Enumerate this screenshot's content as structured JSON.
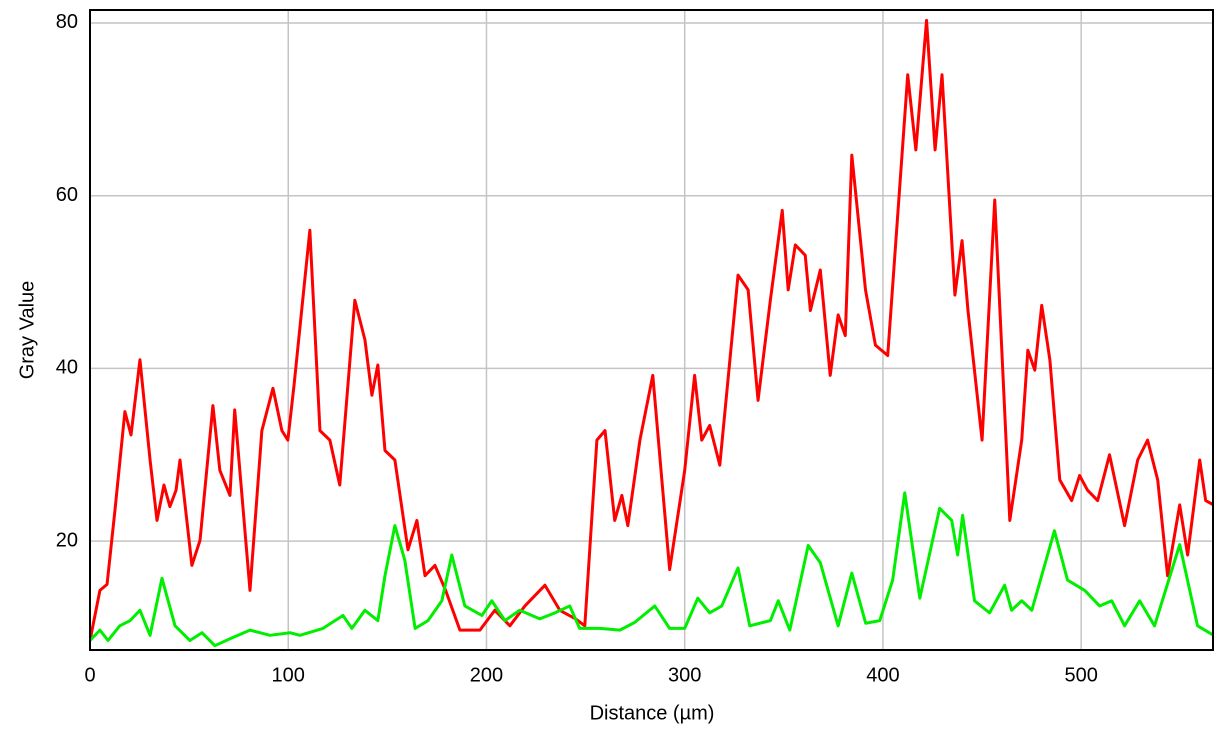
{
  "chart_data": {
    "type": "line",
    "xlabel": "Distance (µm)",
    "ylabel": "Gray Value",
    "xlim": [
      0,
      567
    ],
    "ylim": [
      7.4,
      81.5
    ],
    "xticks": [
      0,
      100,
      200,
      300,
      400,
      500
    ],
    "yticks": [
      20,
      40,
      60,
      80
    ],
    "grid": true,
    "series": [
      {
        "color": "#ff0000",
        "x": [
          0,
          5,
          8.6,
          12.6,
          17.6,
          20.7,
          25.2,
          30.3,
          33.8,
          37.3,
          40.3,
          43.4,
          45.4,
          51.4,
          55.5,
          62,
          65.5,
          70.6,
          73,
          80.7,
          86.7,
          92.3,
          96.8,
          99.8,
          102.9,
          110.9,
          116,
          121,
          126,
          133.6,
          138.7,
          142.2,
          145.2,
          148.8,
          153.8,
          160.4,
          164.9,
          169,
          174,
          179.4,
          186.6,
          196.7,
          204.2,
          211.8,
          219.4,
          229.5,
          237,
          245,
          249.6,
          255.7,
          259.8,
          264.7,
          268.3,
          271.3,
          277.4,
          283.9,
          292.4,
          300,
          305,
          308.6,
          312.6,
          317.7,
          326.9,
          332,
          337,
          343.2,
          349.2,
          352.2,
          355.8,
          360.8,
          363.4,
          368.4,
          373.4,
          377.4,
          381,
          384.3,
          391.2,
          396.2,
          402.4,
          412.5,
          416.6,
          422,
          426.3,
          429.8,
          436.3,
          439.9,
          442.9,
          450,
          456.4,
          464,
          470,
          473.1,
          476.6,
          480.1,
          484.2,
          489.2,
          495.2,
          499.2,
          503.2,
          508.3,
          514.3,
          521.9,
          528.5,
          533.5,
          538.6,
          543.6,
          549.7,
          553.7,
          559.8,
          562.8,
          566.8
        ],
        "values": [
          8.5,
          14.3,
          15,
          23.6,
          35,
          32.3,
          41,
          29.4,
          22.4,
          26.5,
          24,
          25.9,
          29.4,
          17.2,
          20.1,
          35.7,
          28.2,
          25.3,
          35.2,
          14.3,
          32.8,
          37.7,
          32.8,
          31.7,
          38,
          56,
          32.8,
          31.7,
          26.5,
          47.9,
          43.3,
          36.9,
          40.4,
          30.5,
          29.4,
          19,
          22.4,
          16,
          17.2,
          14.3,
          9.7,
          9.7,
          12,
          10.2,
          12.5,
          14.9,
          12,
          11,
          10.2,
          31.7,
          32.8,
          22.4,
          25.3,
          21.8,
          31.7,
          39.2,
          16.7,
          28.2,
          39.2,
          31.7,
          33.4,
          28.8,
          50.8,
          49.1,
          36.3,
          47.9,
          58.3,
          49.1,
          54.3,
          53.1,
          46.7,
          51.4,
          39.2,
          46.2,
          43.8,
          64.7,
          49.1,
          42.7,
          41.5,
          74,
          65.3,
          80.3,
          65.3,
          74,
          48.5,
          54.8,
          46.7,
          31.7,
          59.5,
          22.4,
          31.7,
          42.1,
          39.8,
          47.3,
          41,
          27.1,
          24.7,
          27.6,
          25.9,
          24.7,
          30,
          21.8,
          29.4,
          31.7,
          27.1,
          16,
          24.2,
          18.4,
          29.4,
          24.7,
          24.2
        ]
      },
      {
        "color": "#00ee00",
        "x": [
          0,
          5,
          9.1,
          15,
          20.2,
          25.2,
          30.3,
          36.3,
          42.9,
          50.4,
          56.5,
          63,
          70.6,
          80.7,
          90.8,
          100.9,
          105.9,
          117.5,
          127.6,
          132.1,
          138.7,
          145.2,
          148.8,
          153.8,
          158.8,
          164,
          170.5,
          177.5,
          182.5,
          189.1,
          197.7,
          202.7,
          209.3,
          216.8,
          226.9,
          234.5,
          242,
          247,
          257.2,
          267.3,
          274.8,
          284.9,
          292.4,
          300,
          306.6,
          312.6,
          318.7,
          326.9,
          332.8,
          343.2,
          347.2,
          353,
          362.3,
          368.4,
          377.4,
          384.3,
          391.3,
          398.4,
          404.9,
          411,
          418.6,
          428.6,
          434.7,
          437.7,
          440.2,
          446.2,
          453.8,
          461.4,
          464.9,
          470,
          475.1,
          486.5,
          493.1,
          501.8,
          509.3,
          515.4,
          521.9,
          529.5,
          537,
          549.7,
          558.7,
          566.8
        ],
        "values": [
          8.5,
          9.7,
          8.5,
          10.2,
          10.8,
          12,
          9.1,
          15.7,
          10.2,
          8.5,
          9.4,
          7.9,
          8.7,
          9.7,
          9.1,
          9.4,
          9.1,
          9.9,
          11.4,
          9.9,
          12,
          10.8,
          16,
          21.8,
          17.8,
          9.9,
          10.8,
          13.1,
          18.4,
          12.5,
          11.4,
          13.1,
          10.8,
          12,
          11,
          11.7,
          12.5,
          9.9,
          9.9,
          9.7,
          10.6,
          12.5,
          9.9,
          9.9,
          13.4,
          11.7,
          12.5,
          16.9,
          10.2,
          10.8,
          13.1,
          9.7,
          19.5,
          17.5,
          10.2,
          16.3,
          10.5,
          10.8,
          15.5,
          25.6,
          13.4,
          23.8,
          22.4,
          18.4,
          23,
          13.1,
          11.7,
          14.9,
          12,
          13.1,
          12,
          21.2,
          15.5,
          14.3,
          12.5,
          13.1,
          10.2,
          13.1,
          10.2,
          19.6,
          10.2,
          9.1
        ]
      }
    ]
  }
}
